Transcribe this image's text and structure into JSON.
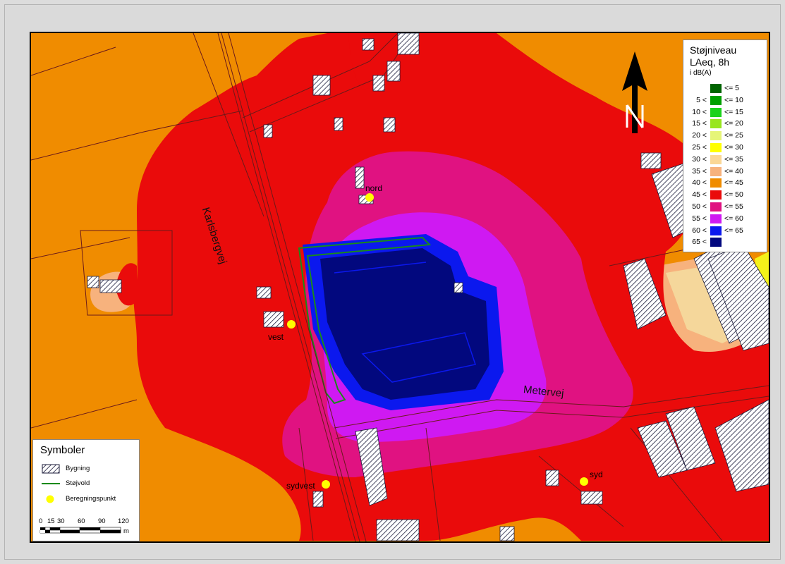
{
  "map": {
    "road_labels": {
      "karlsbergvej": "Karlsbergvej",
      "metervej": "Metervej"
    },
    "points": {
      "nord": "nord",
      "vest": "vest",
      "sydvest": "sydvest",
      "syd": "syd"
    },
    "colors": {
      "c40_45": "#f08c00",
      "c45_50": "#ea0b0b",
      "c50_55": "#e01281",
      "c55_60": "#cf19f2",
      "c60_65": "#0b18ee",
      "c65": "#02087e",
      "c35_40": "#f7b27d",
      "c30_35": "#f5d79b",
      "c25_30": "#f4f21a",
      "building": "#ffffff",
      "wall": "#1a8a1a",
      "point": "#ffff00"
    }
  },
  "noise_legend": {
    "title_line1": "Støjniveau",
    "title_line2": "LAeq, 8h",
    "unit": "i dB(A)",
    "rows": [
      {
        "lo": "",
        "hi": "<= 5",
        "color": "#006400"
      },
      {
        "lo": "5 <",
        "hi": "<= 10",
        "color": "#00a000"
      },
      {
        "lo": "10 <",
        "hi": "<= 15",
        "color": "#1cd21c"
      },
      {
        "lo": "15 <",
        "hi": "<= 20",
        "color": "#98e61e"
      },
      {
        "lo": "20 <",
        "hi": "<= 25",
        "color": "#e6f578"
      },
      {
        "lo": "25 <",
        "hi": "<= 30",
        "color": "#ffff00"
      },
      {
        "lo": "30 <",
        "hi": "<= 35",
        "color": "#fad796"
      },
      {
        "lo": "35 <",
        "hi": "<= 40",
        "color": "#f7b27d"
      },
      {
        "lo": "40 <",
        "hi": "<= 45",
        "color": "#f08c00"
      },
      {
        "lo": "45 <",
        "hi": "<= 50",
        "color": "#ea0b0b"
      },
      {
        "lo": "50 <",
        "hi": "<= 55",
        "color": "#e01281"
      },
      {
        "lo": "55 <",
        "hi": "<= 60",
        "color": "#cf19f2"
      },
      {
        "lo": "60 <",
        "hi": "<= 65",
        "color": "#0b18ee"
      },
      {
        "lo": "65 <",
        "hi": "",
        "color": "#02087e"
      }
    ]
  },
  "symbol_legend": {
    "title": "Symboler",
    "building": "Bygning",
    "wall": "Støjvold",
    "point": "Beregningspunkt"
  },
  "scale_bar": {
    "labels": [
      "0",
      "15",
      "30",
      "60",
      "90",
      "120"
    ],
    "unit": "m"
  },
  "north_arrow": {
    "letter": "N"
  }
}
